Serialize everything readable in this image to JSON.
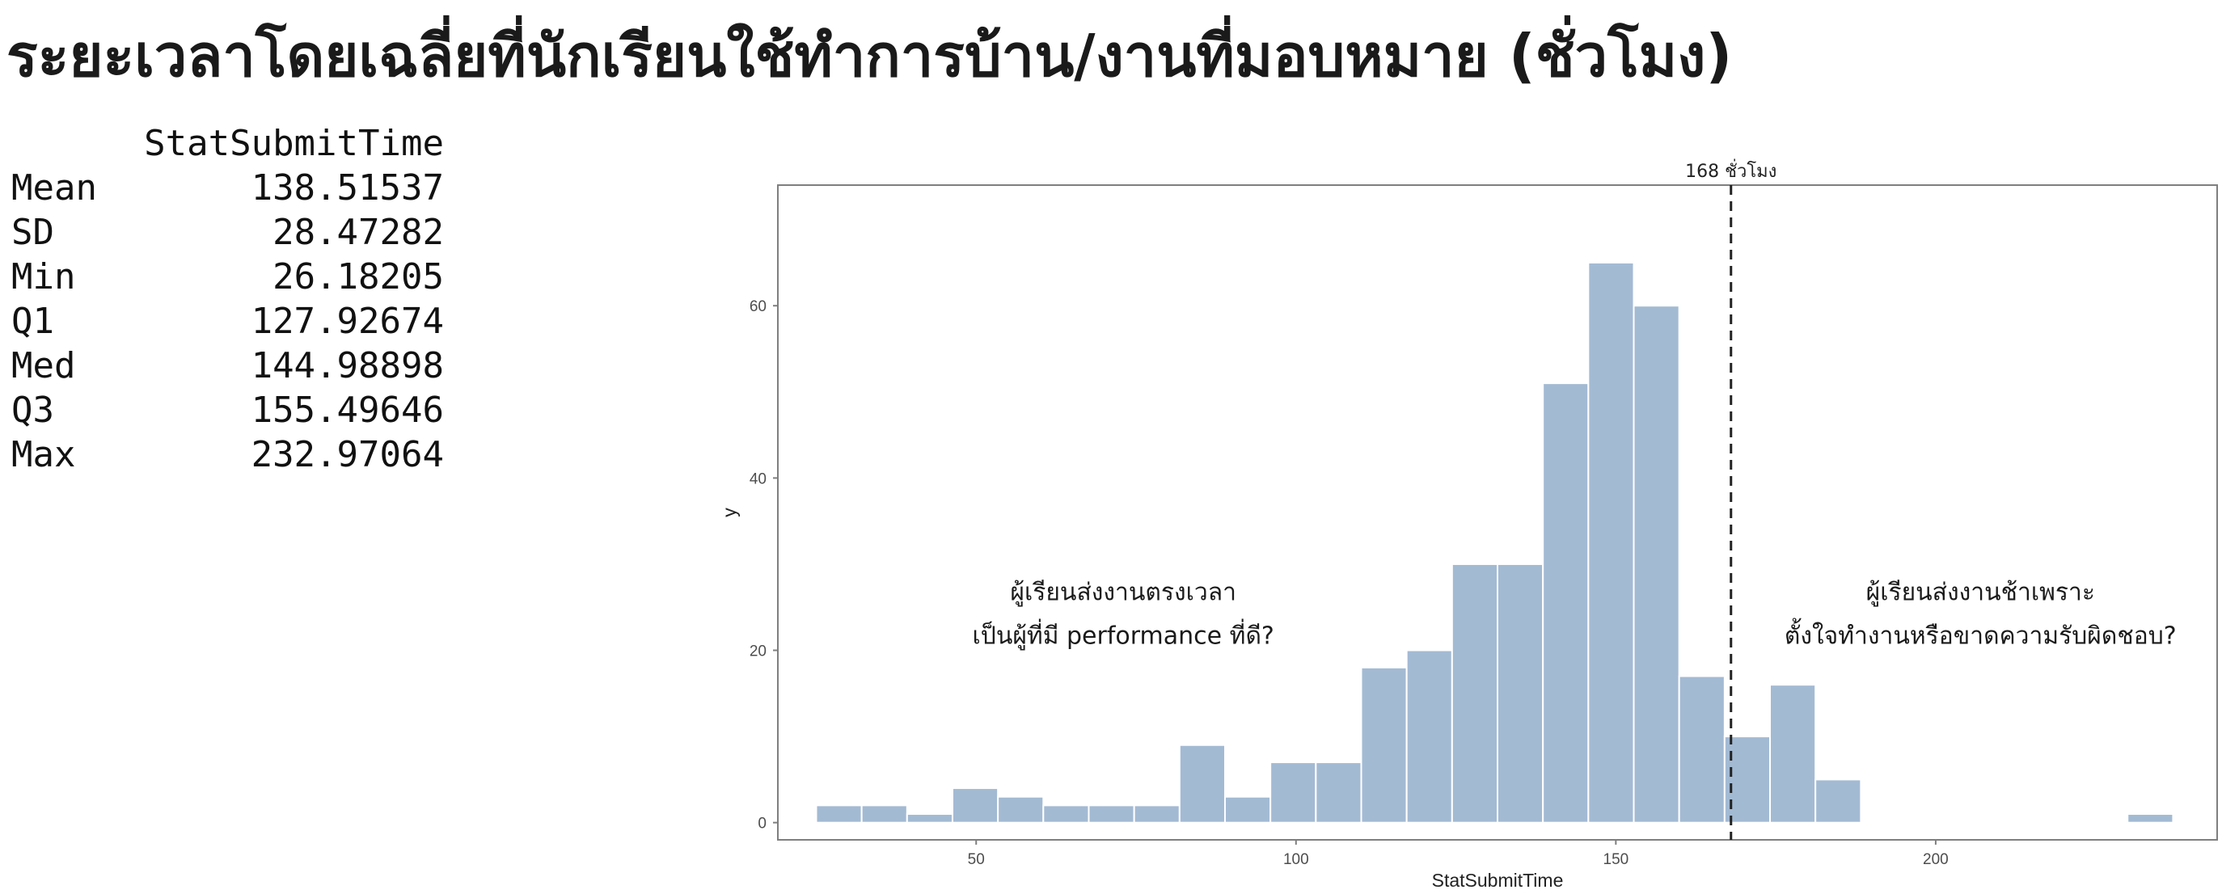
{
  "title": "ระยะเวลาโดยเฉลี่ยที่นักเรียนใช้ทำการบ้าน/งานที่มอบหมาย (ชั่วโมง)",
  "summary_table": {
    "header": "StatSubmitTime",
    "rows": [
      {
        "label": "Mean",
        "value": "138.51537"
      },
      {
        "label": "SD",
        "value": "28.47282"
      },
      {
        "label": "Min",
        "value": "26.18205"
      },
      {
        "label": "Q1",
        "value": "127.92674"
      },
      {
        "label": "Med",
        "value": "144.98898"
      },
      {
        "label": "Q3",
        "value": "155.49646"
      },
      {
        "label": "Max",
        "value": "232.97064"
      }
    ]
  },
  "chart_data": {
    "type": "bar",
    "subtype": "histogram",
    "xlabel": "StatSubmitTime",
    "ylabel": "y",
    "xlim": [
      19,
      244
    ],
    "ylim": [
      -2,
      74
    ],
    "xticks": [
      50,
      100,
      150,
      200
    ],
    "yticks": [
      0,
      20,
      40,
      60
    ],
    "bin_width": 7.1,
    "bins": [
      {
        "start": 25.0,
        "end": 32.1,
        "count": 2
      },
      {
        "start": 32.1,
        "end": 39.2,
        "count": 2
      },
      {
        "start": 39.2,
        "end": 46.3,
        "count": 1
      },
      {
        "start": 46.3,
        "end": 53.4,
        "count": 4
      },
      {
        "start": 53.4,
        "end": 60.5,
        "count": 3
      },
      {
        "start": 60.5,
        "end": 67.6,
        "count": 2
      },
      {
        "start": 67.6,
        "end": 74.7,
        "count": 2
      },
      {
        "start": 74.7,
        "end": 81.8,
        "count": 2
      },
      {
        "start": 81.8,
        "end": 88.9,
        "count": 9
      },
      {
        "start": 88.9,
        "end": 96.0,
        "count": 3
      },
      {
        "start": 96.0,
        "end": 103.1,
        "count": 7
      },
      {
        "start": 103.1,
        "end": 110.2,
        "count": 7
      },
      {
        "start": 110.2,
        "end": 117.3,
        "count": 18
      },
      {
        "start": 117.3,
        "end": 124.4,
        "count": 20
      },
      {
        "start": 124.4,
        "end": 131.5,
        "count": 30
      },
      {
        "start": 131.5,
        "end": 138.6,
        "count": 30
      },
      {
        "start": 138.6,
        "end": 145.7,
        "count": 51
      },
      {
        "start": 145.7,
        "end": 152.8,
        "count": 65
      },
      {
        "start": 152.8,
        "end": 159.9,
        "count": 60
      },
      {
        "start": 159.9,
        "end": 167.0,
        "count": 17
      },
      {
        "start": 167.0,
        "end": 174.1,
        "count": 10
      },
      {
        "start": 174.1,
        "end": 181.2,
        "count": 16
      },
      {
        "start": 181.2,
        "end": 188.3,
        "count": 5
      },
      {
        "start": 230.0,
        "end": 237.1,
        "count": 1
      }
    ],
    "reference_line": {
      "x": 168,
      "label": "168 ชั่วโมง",
      "style": "dashed"
    },
    "annotations": [
      {
        "lines": [
          "ผู้เรียนส่งงานตรงเวลา",
          "เป็นผู้ที่มี performance ที่ดี?"
        ],
        "x": 73,
        "y": 23
      },
      {
        "lines": [
          "ผู้เรียนส่งงานช้าเพราะ",
          "ตั้งใจทำงานหรือขาดความรับผิดชอบ?"
        ],
        "x": 207,
        "y": 23
      }
    ],
    "bar_color": "#a3bad3",
    "bar_edge_color": "#ffffff",
    "panel_border_color": "#7f7f7f",
    "grid": false,
    "legend": "none"
  }
}
